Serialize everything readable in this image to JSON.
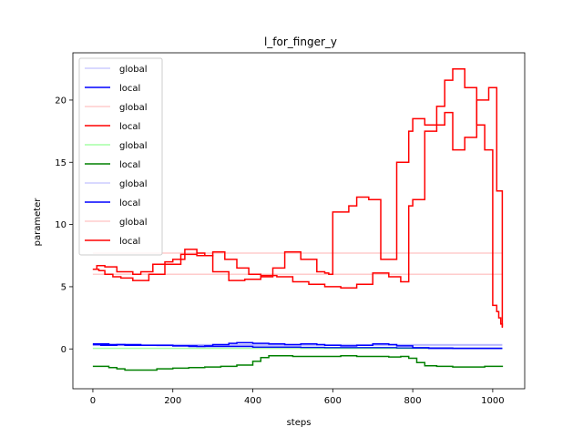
{
  "chart_data": {
    "type": "line",
    "title": "l_for_finger_y",
    "xlabel": "steps",
    "ylabel": "parameter",
    "xlim": [
      -50,
      1080
    ],
    "ylim": [
      -3.2,
      23.8
    ],
    "xticks": [
      0,
      200,
      400,
      600,
      800,
      1000
    ],
    "yticks": [
      0,
      5,
      10,
      15,
      20
    ],
    "legend_position": "upper-left",
    "grid": false,
    "series": [
      {
        "name": "global",
        "color": "#0000ff",
        "alpha": 0.2,
        "x": [
          0,
          1024
        ],
        "y": [
          0.35,
          0.35
        ]
      },
      {
        "name": "local",
        "color": "#0000ff",
        "alpha": 1.0,
        "x": [
          0,
          20,
          60,
          120,
          200,
          260,
          320,
          400,
          450,
          520,
          580,
          640,
          700,
          760,
          820,
          900,
          960,
          1024
        ],
        "y": [
          0.35,
          0.3,
          0.35,
          0.3,
          0.25,
          0.2,
          0.2,
          0.15,
          0.15,
          0.12,
          0.1,
          0.1,
          0.1,
          0.08,
          0.08,
          0.05,
          0.05,
          0.05
        ]
      },
      {
        "name": "global",
        "color": "#ff0000",
        "alpha": 0.2,
        "x": [
          0,
          1024
        ],
        "y": [
          6.0,
          6.0
        ]
      },
      {
        "name": "local",
        "color": "#ff0000",
        "alpha": 1.0,
        "x": [
          0,
          15,
          30,
          50,
          70,
          100,
          140,
          180,
          220,
          260,
          300,
          340,
          380,
          420,
          460,
          500,
          540,
          580,
          620,
          660,
          700,
          740,
          770,
          790,
          800,
          830,
          860,
          880,
          900,
          930,
          960,
          990,
          1010,
          1024
        ],
        "y": [
          6.4,
          6.3,
          6.0,
          5.8,
          5.7,
          5.5,
          6.0,
          6.8,
          7.6,
          7.5,
          6.2,
          5.5,
          5.6,
          5.9,
          5.8,
          5.4,
          5.2,
          5.0,
          4.9,
          5.2,
          6.1,
          5.8,
          5.4,
          11.5,
          12.0,
          17.5,
          18.0,
          19.0,
          16.0,
          17.0,
          20.0,
          21.0,
          12.7,
          1.7
        ]
      },
      {
        "name": "global",
        "color": "#00ff00",
        "alpha": 0.35,
        "x": [
          0,
          1024
        ],
        "y": [
          0.05,
          0.05
        ]
      },
      {
        "name": "local",
        "color": "#008000",
        "alpha": 1.0,
        "x": [
          0,
          20,
          40,
          60,
          80,
          100,
          130,
          160,
          200,
          240,
          280,
          320,
          360,
          400,
          420,
          440,
          460,
          500,
          540,
          580,
          620,
          660,
          700,
          740,
          770,
          790,
          810,
          830,
          860,
          900,
          940,
          980,
          1024
        ],
        "y": [
          -1.4,
          -1.4,
          -1.5,
          -1.6,
          -1.7,
          -1.7,
          -1.7,
          -1.6,
          -1.55,
          -1.5,
          -1.45,
          -1.4,
          -1.3,
          -1.0,
          -0.7,
          -0.55,
          -0.55,
          -0.6,
          -0.6,
          -0.6,
          -0.55,
          -0.6,
          -0.6,
          -0.65,
          -0.6,
          -0.75,
          -1.1,
          -1.35,
          -1.4,
          -1.45,
          -1.45,
          -1.4,
          -1.45
        ]
      },
      {
        "name": "global",
        "color": "#0000ff",
        "alpha": 0.2,
        "x": [
          0,
          1024
        ],
        "y": [
          0.3,
          0.3
        ]
      },
      {
        "name": "local",
        "color": "#0000ff",
        "alpha": 1.0,
        "x": [
          0,
          40,
          80,
          120,
          160,
          200,
          240,
          280,
          300,
          340,
          360,
          380,
          400,
          440,
          480,
          520,
          560,
          580,
          620,
          660,
          700,
          740,
          760,
          800,
          840,
          900,
          960,
          1024
        ],
        "y": [
          0.4,
          0.35,
          0.3,
          0.3,
          0.28,
          0.25,
          0.2,
          0.25,
          0.35,
          0.45,
          0.5,
          0.5,
          0.45,
          0.4,
          0.35,
          0.4,
          0.35,
          0.3,
          0.25,
          0.3,
          0.4,
          0.35,
          0.25,
          0.1,
          0.05,
          0.05,
          0.05,
          0.05
        ]
      },
      {
        "name": "global",
        "color": "#ff0000",
        "alpha": 0.2,
        "x": [
          0,
          1024
        ],
        "y": [
          7.7,
          7.7
        ]
      },
      {
        "name": "local",
        "color": "#ff0000",
        "alpha": 1.0,
        "x": [
          0,
          10,
          30,
          60,
          80,
          100,
          120,
          150,
          180,
          200,
          230,
          260,
          280,
          300,
          330,
          360,
          390,
          420,
          450,
          480,
          520,
          560,
          580,
          590,
          600,
          640,
          660,
          690,
          720,
          760,
          790,
          800,
          830,
          860,
          880,
          900,
          930,
          960,
          980,
          1000,
          1010,
          1015,
          1020,
          1024
        ],
        "y": [
          6.4,
          6.7,
          6.6,
          6.2,
          6.2,
          6.0,
          6.2,
          6.8,
          7.0,
          7.2,
          8.0,
          7.7,
          7.5,
          7.8,
          7.2,
          6.5,
          6.0,
          5.8,
          6.5,
          7.8,
          7.2,
          6.2,
          6.1,
          6.0,
          11.0,
          11.5,
          12.2,
          12.0,
          7.2,
          15.0,
          17.5,
          18.5,
          18.0,
          19.5,
          21.6,
          22.5,
          21.0,
          18.0,
          16.0,
          3.5,
          3.0,
          2.5,
          2.0,
          1.8
        ]
      }
    ]
  }
}
